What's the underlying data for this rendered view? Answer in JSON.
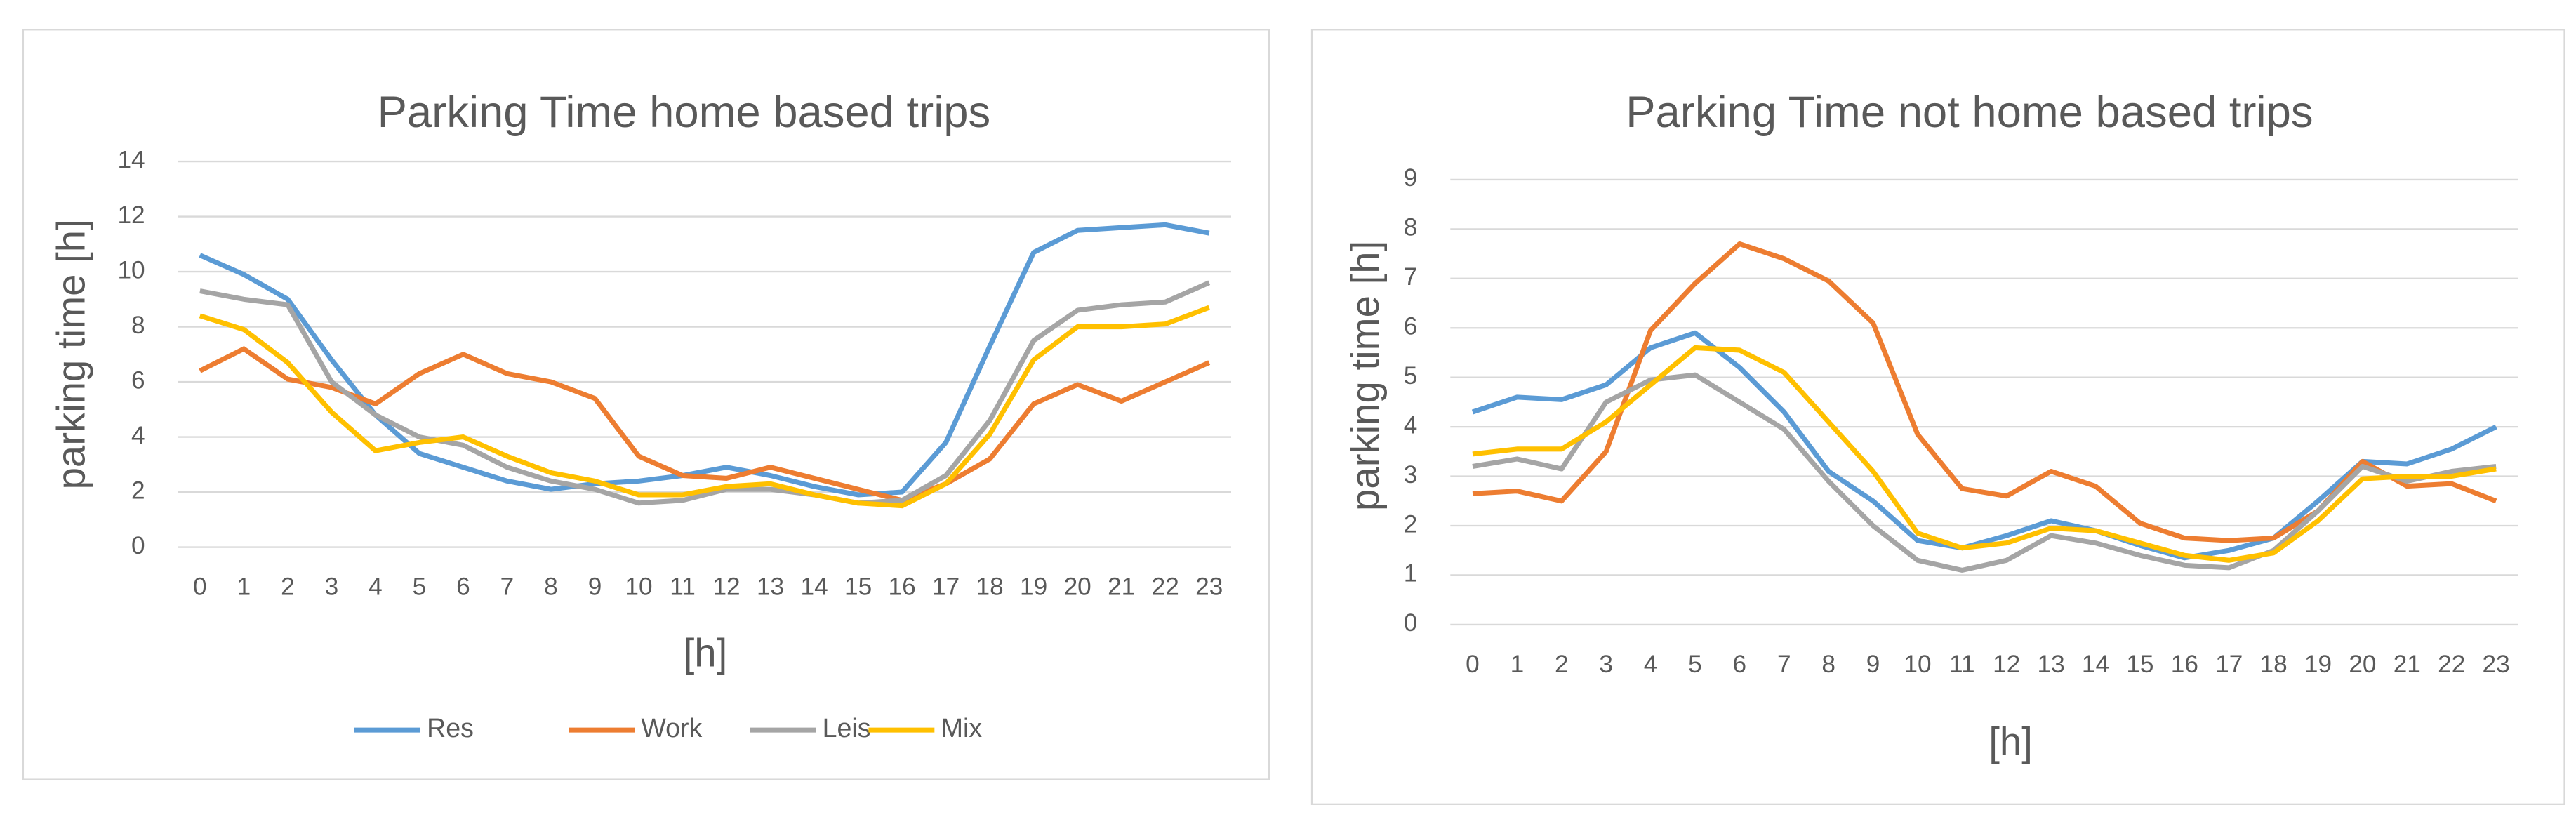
{
  "chart_data": [
    {
      "type": "line",
      "title": "Parking Time  home  based trips",
      "y_label": "parking time [h]",
      "x_label": "[h]",
      "categories": [
        "0",
        "1",
        "2",
        "3",
        "4",
        "5",
        "6",
        "7",
        "8",
        "9",
        "10",
        "11",
        "12",
        "13",
        "14",
        "15",
        "16",
        "17",
        "18",
        "19",
        "20",
        "21",
        "22",
        "23"
      ],
      "series": [
        {
          "name": "Res",
          "color": "#5b9bd5",
          "values": [
            10.6,
            9.9,
            9.0,
            6.8,
            4.8,
            3.4,
            2.9,
            2.4,
            2.1,
            2.3,
            2.4,
            2.6,
            2.9,
            2.6,
            2.2,
            1.9,
            2.0,
            3.8,
            7.3,
            10.7,
            11.5,
            11.6,
            11.7,
            11.4
          ]
        },
        {
          "name": "Work",
          "color": "#ed7d31",
          "values": [
            6.4,
            7.2,
            6.1,
            5.8,
            5.2,
            6.3,
            7.0,
            6.3,
            6.0,
            5.4,
            3.3,
            2.6,
            2.5,
            2.9,
            2.5,
            2.1,
            1.7,
            2.3,
            3.2,
            5.2,
            5.9,
            5.3,
            6.0,
            6.7
          ]
        },
        {
          "name": "Leis",
          "color": "#a5a5a5",
          "values": [
            9.3,
            9.0,
            8.8,
            6.0,
            4.8,
            4.0,
            3.7,
            2.9,
            2.4,
            2.1,
            1.6,
            1.7,
            2.1,
            2.1,
            1.9,
            1.6,
            1.7,
            2.6,
            4.6,
            7.5,
            8.6,
            8.8,
            8.9,
            9.6
          ]
        },
        {
          "name": "Mix",
          "color": "#ffc000",
          "values": [
            8.4,
            7.9,
            6.7,
            4.9,
            3.5,
            3.8,
            4.0,
            3.3,
            2.7,
            2.4,
            1.9,
            1.9,
            2.2,
            2.3,
            1.9,
            1.6,
            1.5,
            2.3,
            4.1,
            6.8,
            8.0,
            8.0,
            8.1,
            8.7
          ]
        }
      ],
      "ylim": [
        0,
        14
      ],
      "yticks": [
        0,
        2,
        4,
        6,
        8,
        10,
        12,
        14
      ],
      "grid": true,
      "legend": "bottom"
    },
    {
      "type": "line",
      "title": "Parking Time  not  home  based trips",
      "y_label": "parking time [h]",
      "x_label": "[h]",
      "categories": [
        "0",
        "1",
        "2",
        "3",
        "4",
        "5",
        "6",
        "7",
        "8",
        "9",
        "10",
        "11",
        "12",
        "13",
        "14",
        "15",
        "16",
        "17",
        "18",
        "19",
        "20",
        "21",
        "22",
        "23"
      ],
      "series": [
        {
          "color": "#5b9bd5",
          "values": [
            4.3,
            4.6,
            4.55,
            4.85,
            5.6,
            5.9,
            5.2,
            4.3,
            3.1,
            2.5,
            1.7,
            1.55,
            1.8,
            2.1,
            1.9,
            1.6,
            1.35,
            1.5,
            1.75,
            2.5,
            3.3,
            3.25,
            3.55,
            4.0
          ]
        },
        {
          "color": "#ed7d31",
          "values": [
            2.65,
            2.7,
            2.5,
            3.5,
            5.95,
            6.9,
            7.7,
            7.4,
            6.95,
            6.1,
            3.85,
            2.75,
            2.6,
            3.1,
            2.8,
            2.05,
            1.75,
            1.7,
            1.75,
            2.3,
            3.3,
            2.8,
            2.85,
            2.5
          ]
        },
        {
          "color": "#a5a5a5",
          "values": [
            3.2,
            3.35,
            3.15,
            4.5,
            4.95,
            5.05,
            4.5,
            3.95,
            2.9,
            2.0,
            1.3,
            1.1,
            1.3,
            1.8,
            1.65,
            1.4,
            1.2,
            1.15,
            1.5,
            2.3,
            3.2,
            2.9,
            3.1,
            3.2
          ]
        },
        {
          "color": "#ffc000",
          "values": [
            3.45,
            3.55,
            3.55,
            4.1,
            4.85,
            5.6,
            5.55,
            5.1,
            4.1,
            3.1,
            1.85,
            1.55,
            1.65,
            1.95,
            1.9,
            1.65,
            1.4,
            1.3,
            1.45,
            2.1,
            2.95,
            3.0,
            3.0,
            3.15
          ]
        }
      ],
      "ylim": [
        0,
        9
      ],
      "yticks": [
        0,
        1,
        2,
        3,
        4,
        5,
        6,
        7,
        8,
        9
      ],
      "grid": true
    }
  ]
}
